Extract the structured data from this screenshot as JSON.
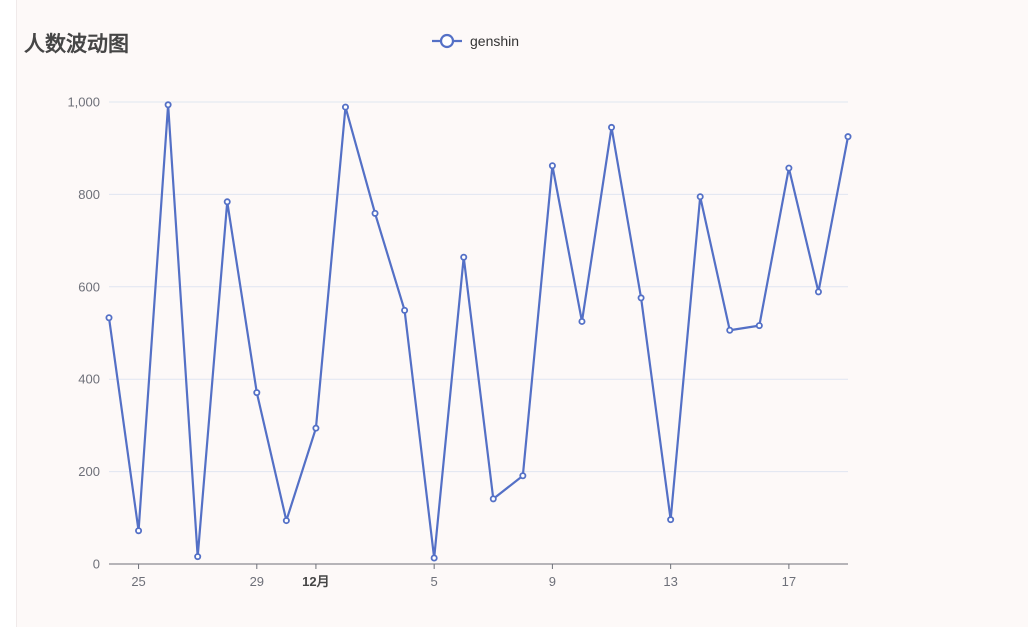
{
  "chart_data": {
    "type": "line",
    "title": "人数波动图",
    "xlabel": "",
    "ylabel": "",
    "x_axis_type": "time",
    "x": [
      "11-24",
      "11-25",
      "11-26",
      "11-27",
      "11-28",
      "11-29",
      "11-30",
      "12-01",
      "12-02",
      "12-03",
      "12-04",
      "12-05",
      "12-06",
      "12-07",
      "12-08",
      "12-09",
      "12-10",
      "12-11",
      "12-12",
      "12-13",
      "12-14",
      "12-15",
      "12-16",
      "12-17",
      "12-18",
      "12-19"
    ],
    "x_tick_labels": [
      {
        "date": "11-25",
        "label": "25",
        "bold": false
      },
      {
        "date": "11-29",
        "label": "29",
        "bold": false
      },
      {
        "date": "12-01",
        "label": "12月",
        "bold": true
      },
      {
        "date": "12-05",
        "label": "5",
        "bold": false
      },
      {
        "date": "12-09",
        "label": "9",
        "bold": false
      },
      {
        "date": "12-13",
        "label": "13",
        "bold": false
      },
      {
        "date": "12-17",
        "label": "17",
        "bold": false
      }
    ],
    "ylim": [
      0,
      1000
    ],
    "y_ticks": [
      0,
      200,
      400,
      600,
      800,
      1000
    ],
    "y_tick_labels": [
      "0",
      "200",
      "400",
      "600",
      "800",
      "1,000"
    ],
    "grid": true,
    "legend_position": "top-center",
    "series": [
      {
        "name": "genshin",
        "color": "#5470c6",
        "values": [
          533,
          72,
          994,
          16,
          784,
          371,
          94,
          294,
          989,
          759,
          549,
          13,
          664,
          141,
          191,
          862,
          525,
          945,
          576,
          96,
          795,
          506,
          516,
          857,
          589,
          925
        ]
      }
    ]
  }
}
